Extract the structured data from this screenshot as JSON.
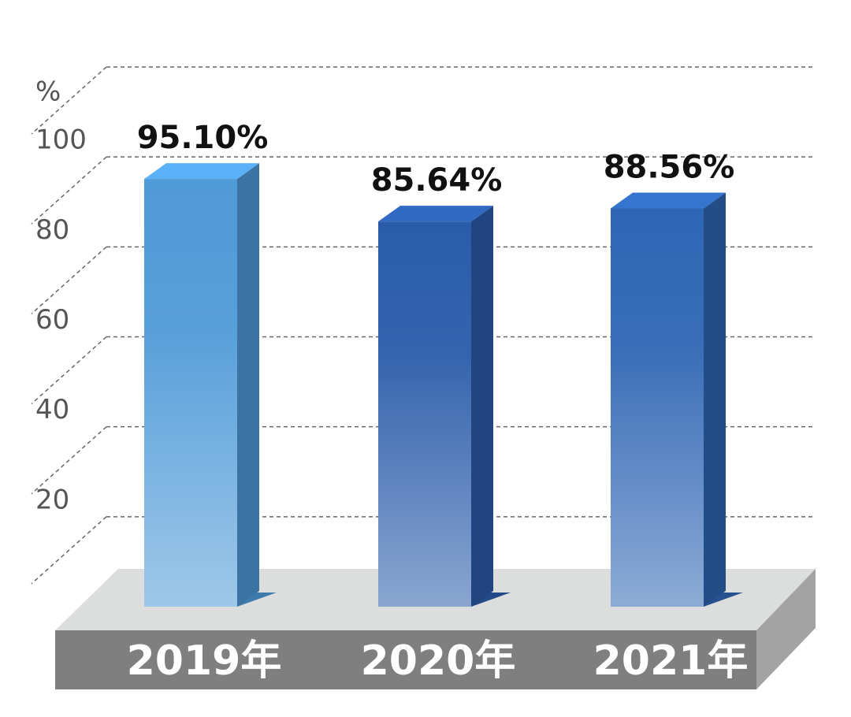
{
  "chart_data": {
    "type": "bar",
    "ylabel": "%",
    "categories": [
      "2019年",
      "2020年",
      "2021年"
    ],
    "values": [
      95.1,
      85.64,
      88.56
    ],
    "value_labels": [
      "95.10%",
      "85.64%",
      "88.56%"
    ],
    "colors": [
      "#4f9ad8",
      "#2a5caa",
      "#2f66b4"
    ],
    "ylim": [
      0,
      120
    ],
    "yticks": [
      20,
      40,
      60,
      80,
      100
    ],
    "grid": true
  }
}
